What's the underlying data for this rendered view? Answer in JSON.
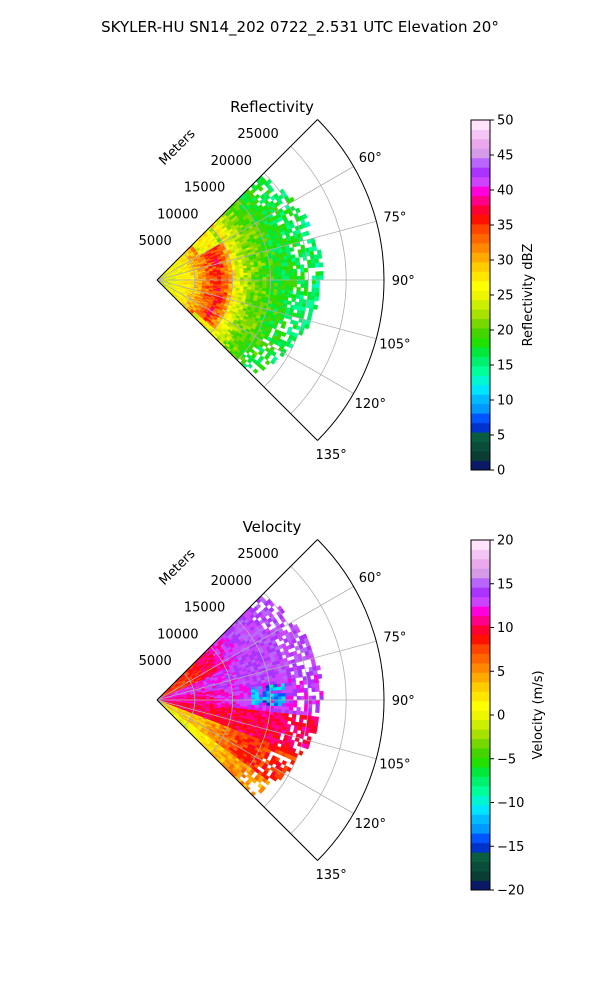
{
  "figure": {
    "suptitle": "SKYLER-HU  SN14_202  0722_2.531 UTC Elevation 20°"
  },
  "chart_data": [
    {
      "type": "heatmap",
      "subtype": "polar-sector (PPI radar scan)",
      "title": "Reflectivity",
      "radial_axis_label": "Meters",
      "radial_tick_labels": [
        "5000",
        "10000",
        "15000",
        "20000",
        "25000"
      ],
      "radial_ticks": [
        5000,
        10000,
        15000,
        20000,
        25000
      ],
      "rlim": [
        0,
        30000
      ],
      "theta_tick_labels": [
        "60°",
        "75°",
        "90°",
        "105°",
        "120°",
        "135°"
      ],
      "theta_ticks": [
        60,
        75,
        90,
        105,
        120,
        135
      ],
      "theta_range_deg": [
        45,
        135
      ],
      "theta_zero_location": "north",
      "theta_direction": "clockwise",
      "data_azimuth_range_deg": [
        45,
        135
      ],
      "data_max_range_m": [
        22500,
        20500
      ],
      "grid": true,
      "colorbar": {
        "label": "Reflectivity dBZ",
        "min": 0,
        "max": 50,
        "tick_labels": [
          "0",
          "5",
          "10",
          "15",
          "20",
          "25",
          "30",
          "35",
          "40",
          "45",
          "50"
        ],
        "ticks": [
          0,
          5,
          10,
          15,
          20,
          25,
          30,
          35,
          40,
          45,
          50
        ],
        "colors": [
          "#0a1a66",
          "#0a3d33",
          "#0a4d3a",
          "#0b5d40",
          "#0033cc",
          "#0055ff",
          "#0099ff",
          "#00bbff",
          "#00e5ff",
          "#00f5d0",
          "#00ff99",
          "#00f070",
          "#00e83c",
          "#22e000",
          "#44d400",
          "#77d800",
          "#a8e000",
          "#ccee00",
          "#eef500",
          "#ffff00",
          "#ffe600",
          "#ffcc00",
          "#ffaa00",
          "#ff8800",
          "#ff6600",
          "#ff4400",
          "#ff1100",
          "#ff0033",
          "#ff0088",
          "#ff00dd",
          "#cc44ff",
          "#aa33ff",
          "#b966ff",
          "#d69be8",
          "#e9a7ec",
          "#f4c6f5",
          "#ffe4fb"
        ]
      },
      "field_profile_dbz": [
        [
          0,
          24
        ],
        [
          4000,
          27
        ],
        [
          6500,
          33
        ],
        [
          8000,
          36
        ],
        [
          9000,
          33
        ],
        [
          10500,
          25
        ],
        [
          12500,
          21
        ],
        [
          16000,
          18
        ],
        [
          22500,
          15
        ]
      ],
      "rim_azimuth_range_deg": [
        60,
        130
      ]
    },
    {
      "type": "heatmap",
      "subtype": "polar-sector (PPI radar scan)",
      "title": "Velocity",
      "radial_axis_label": "Meters",
      "radial_tick_labels": [
        "5000",
        "10000",
        "15000",
        "20000",
        "25000"
      ],
      "radial_ticks": [
        5000,
        10000,
        15000,
        20000,
        25000
      ],
      "rlim": [
        0,
        30000
      ],
      "theta_tick_labels": [
        "60°",
        "75°",
        "90°",
        "105°",
        "120°",
        "135°"
      ],
      "theta_ticks": [
        60,
        75,
        90,
        105,
        120,
        135
      ],
      "theta_range_deg": [
        45,
        135
      ],
      "theta_zero_location": "north",
      "theta_direction": "clockwise",
      "data_azimuth_range_deg": [
        45,
        135
      ],
      "data_max_range_m": [
        22500,
        20500
      ],
      "grid": true,
      "colorbar": {
        "label": "Velocity (m/s)",
        "min": -20,
        "max": 20,
        "tick_labels": [
          "−20",
          "−15",
          "−10",
          "−5",
          "0",
          "5",
          "10",
          "15",
          "20"
        ],
        "ticks": [
          -20,
          -15,
          -10,
          -5,
          0,
          5,
          10,
          15,
          20
        ],
        "colors": [
          "#0a1a66",
          "#0a3d33",
          "#0a4d3a",
          "#0b5d40",
          "#0033cc",
          "#0055ff",
          "#0099ff",
          "#00bbff",
          "#00e5ff",
          "#00f5d0",
          "#00ff99",
          "#00f070",
          "#00e83c",
          "#22e000",
          "#44d400",
          "#77d800",
          "#a8e000",
          "#ccee00",
          "#eef500",
          "#ffff00",
          "#ffe600",
          "#ffcc00",
          "#ffaa00",
          "#ff8800",
          "#ff6600",
          "#ff4400",
          "#ff1100",
          "#ff0033",
          "#ff0088",
          "#ff00dd",
          "#cc44ff",
          "#aa33ff",
          "#b966ff",
          "#d69be8",
          "#e9a7ec",
          "#f4c6f5",
          "#ffe4fb"
        ]
      },
      "field_velocity_ms": {
        "near_range_m": 5000,
        "near_values": [
          8,
          12,
          11,
          10,
          3,
          0
        ],
        "far_values": [
          14,
          14,
          13,
          10,
          8,
          5
        ],
        "azimuth_breaks_deg": [
          45,
          65,
          80,
          95,
          110,
          125,
          135
        ],
        "negative_patch": {
          "azimuth_deg": [
            82,
            92
          ],
          "range_m": [
            12500,
            16500
          ],
          "value": -12
        }
      }
    }
  ]
}
